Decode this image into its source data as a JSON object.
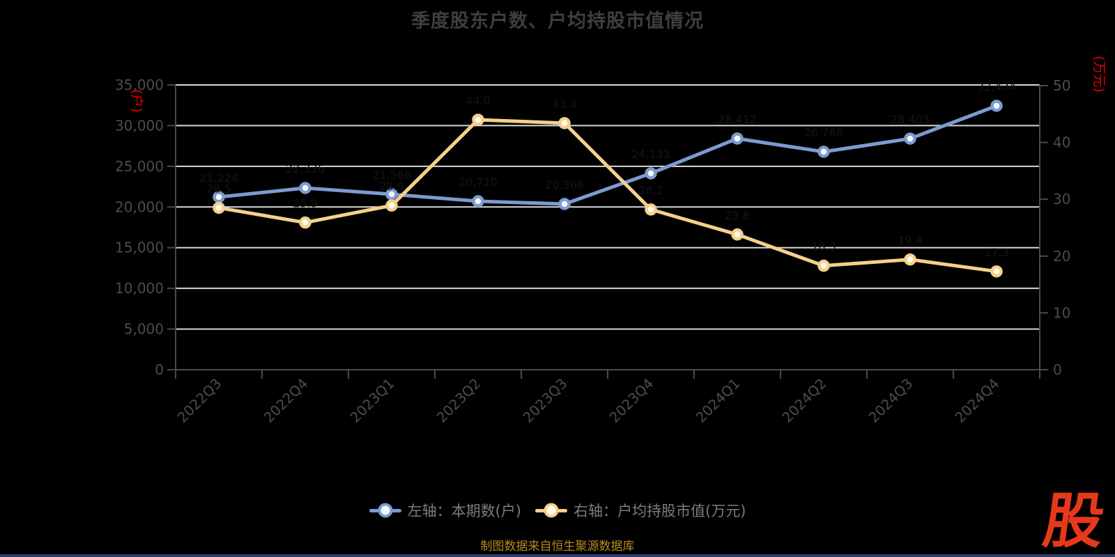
{
  "title": "季度股东户数、户均持股市值情况",
  "axes": {
    "left": {
      "unit_label": "(户)",
      "tick_labels": [
        "0",
        "5,000",
        "10,000",
        "15,000",
        "20,000",
        "25,000",
        "30,000",
        "35,000"
      ],
      "max": 35000
    },
    "right": {
      "unit_label": "(万元)",
      "tick_labels": [
        "0",
        "10",
        "20",
        "30",
        "40",
        "50"
      ],
      "max": 50
    }
  },
  "chart_data": {
    "type": "line",
    "title": "季度股东户数、户均持股市值情况",
    "categories": [
      "2022Q3",
      "2022Q4",
      "2023Q1",
      "2023Q2",
      "2023Q3",
      "2023Q4",
      "2024Q1",
      "2024Q2",
      "2024Q3",
      "2024Q4"
    ],
    "series": [
      {
        "name": "左轴：本期数(户)",
        "axis": "left",
        "values": [
          21224,
          22336,
          21566,
          20710,
          20368,
          24133,
          28412,
          26786,
          28403,
          32434
        ],
        "labels": [
          "21,224",
          "22,336",
          "21,566",
          "20,710",
          "20,368",
          "24,133",
          "28,412",
          "26,786",
          "28,403",
          "32,434"
        ],
        "color": "#7D9BD1",
        "marker_fill": "#F7FAFF"
      },
      {
        "name": "右轴：户均持股市值(万元)",
        "axis": "right",
        "values": [
          28.5,
          25.9,
          28.9,
          44.0,
          43.4,
          28.2,
          23.8,
          18.3,
          19.4,
          17.3
        ],
        "labels": [
          "28.5",
          "25.9",
          "28.9",
          "44.0",
          "43.4",
          "28.2",
          "23.8",
          "18.3",
          "19.4",
          "17.3"
        ],
        "color": "#F5D08A",
        "marker_fill": "#FFFDF4"
      }
    ],
    "ylim_left": [
      0,
      35000
    ],
    "ylim_right": [
      0,
      50
    ],
    "grid": true,
    "legend_position": "bottom"
  },
  "legend": {
    "items": [
      {
        "label": "左轴：本期数(户)",
        "color": "#7D9BD1",
        "marker_fill": "#F7FAFF"
      },
      {
        "label": "右轴：户均持股市值(万元)",
        "color": "#F5D08A",
        "marker_fill": "#FFFDF4"
      }
    ]
  },
  "footer": {
    "source_note": "制图数据来自恒生聚源数据库",
    "logo_text": "股"
  },
  "colors": {
    "background": "#000000",
    "grid_line": "#D8D8D8",
    "axis_line": "#4A4A4A",
    "tick_text": "#4C4C4C",
    "title_text": "#3E3E3E",
    "legend_text": "#7C7C7C",
    "unit_text": "#E60000",
    "data_label": "#151515",
    "footer_text": "#B8891C",
    "logo_red": "#E8381C",
    "bottom_bar": "#2B3E70"
  }
}
